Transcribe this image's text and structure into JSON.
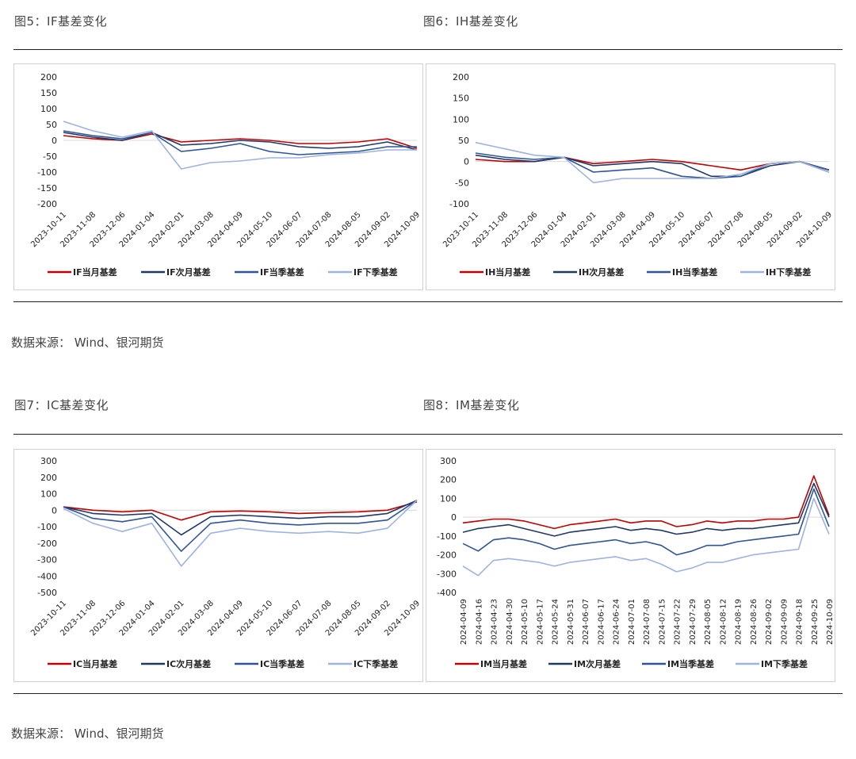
{
  "colors": {
    "s1": "#c00000",
    "s2": "#1f3864",
    "s3": "#2f5597",
    "s4": "#9db3e0",
    "axis": "#555555"
  },
  "figures": {
    "f5": {
      "title": "图5：IF基差变化"
    },
    "f6": {
      "title": "图6：IH基差变化"
    },
    "f7": {
      "title": "图7：IC基差变化"
    },
    "f8": {
      "title": "图8：IM基差变化"
    }
  },
  "source_top": "数据来源：  Wind、银河期货",
  "source_bottom": "数据来源：  Wind、银河期货",
  "chart_data": [
    {
      "id": "f5",
      "type": "line",
      "ylim": [
        -200,
        200
      ],
      "yticks": [
        200,
        150,
        100,
        50,
        0,
        -50,
        -100,
        -150,
        -200
      ],
      "categories": [
        "2023-10-11",
        "2023-11-08",
        "2023-12-06",
        "2024-01-04",
        "2024-02-01",
        "2024-03-08",
        "2024-04-09",
        "2024-05-10",
        "2024-06-07",
        "2024-07-08",
        "2024-08-05",
        "2024-09-02",
        "2024-10-09"
      ],
      "series": [
        {
          "name": "IF当月基差",
          "values": [
            15,
            5,
            0,
            20,
            -5,
            0,
            5,
            0,
            -10,
            -10,
            -5,
            5,
            -25
          ]
        },
        {
          "name": "IF次月基差",
          "values": [
            25,
            10,
            0,
            25,
            -15,
            -10,
            0,
            -5,
            -20,
            -25,
            -20,
            -5,
            -30
          ]
        },
        {
          "name": "IF当季基差",
          "values": [
            30,
            15,
            5,
            25,
            -35,
            -25,
            -10,
            -35,
            -45,
            -40,
            -35,
            -20,
            -20
          ]
        },
        {
          "name": "IF下季基差",
          "values": [
            60,
            30,
            10,
            30,
            -90,
            -70,
            -65,
            -55,
            -55,
            -45,
            -40,
            -30,
            -30
          ]
        }
      ]
    },
    {
      "id": "f6",
      "type": "line",
      "ylim": [
        -100,
        200
      ],
      "yticks": [
        200,
        150,
        100,
        50,
        0,
        -50,
        -100
      ],
      "categories": [
        "2023-10-11",
        "2023-11-08",
        "2023-12-06",
        "2024-01-04",
        "2024-02-01",
        "2024-03-08",
        "2024-04-09",
        "2024-05-10",
        "2024-06-07",
        "2024-07-08",
        "2024-08-05",
        "2024-09-02",
        "2024-10-09"
      ],
      "series": [
        {
          "name": "IH当月基差",
          "values": [
            5,
            0,
            0,
            10,
            -5,
            0,
            5,
            0,
            -10,
            -20,
            -5,
            0,
            -20
          ]
        },
        {
          "name": "IH次月基差",
          "values": [
            15,
            5,
            0,
            10,
            -10,
            -5,
            0,
            -5,
            -35,
            -35,
            -10,
            0,
            -25
          ]
        },
        {
          "name": "IH当季基差",
          "values": [
            20,
            10,
            5,
            10,
            -25,
            -20,
            -15,
            -35,
            -40,
            -35,
            -5,
            0,
            -20
          ]
        },
        {
          "name": "IH下季基差",
          "values": [
            45,
            30,
            15,
            10,
            -50,
            -40,
            -40,
            -40,
            -40,
            -30,
            -5,
            0,
            -25
          ]
        }
      ]
    },
    {
      "id": "f7",
      "type": "line",
      "ylim": [
        -500,
        300
      ],
      "yticks": [
        300,
        200,
        100,
        0,
        -100,
        -200,
        -300,
        -400,
        -500
      ],
      "categories": [
        "2023-10-11",
        "2023-11-08",
        "2023-12-06",
        "2024-01-04",
        "2024-02-01",
        "2024-03-08",
        "2024-04-09",
        "2024-05-10",
        "2024-06-07",
        "2024-07-08",
        "2024-08-05",
        "2024-09-02",
        "2024-10-09"
      ],
      "series": [
        {
          "name": "IC当月基差",
          "values": [
            20,
            0,
            -10,
            0,
            -60,
            -10,
            -5,
            -10,
            -20,
            -15,
            -10,
            0,
            50
          ]
        },
        {
          "name": "IC次月基差",
          "values": [
            20,
            -20,
            -30,
            -20,
            -150,
            -40,
            -30,
            -40,
            -50,
            -40,
            -40,
            -20,
            60
          ]
        },
        {
          "name": "IC当季基差",
          "values": [
            20,
            -50,
            -70,
            -40,
            -250,
            -80,
            -60,
            -80,
            -90,
            -80,
            -80,
            -60,
            60
          ]
        },
        {
          "name": "IC下季基差",
          "values": [
            10,
            -80,
            -130,
            -80,
            -340,
            -140,
            -110,
            -130,
            -140,
            -130,
            -140,
            -110,
            60
          ]
        }
      ]
    },
    {
      "id": "f8",
      "type": "line",
      "ylim": [
        -400,
        300
      ],
      "yticks": [
        300,
        200,
        100,
        0,
        -100,
        -200,
        -300,
        -400
      ],
      "categories": [
        "2024-04-09",
        "2024-04-16",
        "2024-04-23",
        "2024-04-30",
        "2024-05-10",
        "2024-05-17",
        "2024-05-24",
        "2024-05-31",
        "2024-06-07",
        "2024-06-17",
        "2024-06-24",
        "2024-07-01",
        "2024-07-08",
        "2024-07-15",
        "2024-07-22",
        "2024-07-29",
        "2024-08-05",
        "2024-08-12",
        "2024-08-19",
        "2024-08-26",
        "2024-09-02",
        "2024-09-09",
        "2024-09-18",
        "2024-09-25",
        "2024-10-09"
      ],
      "series": [
        {
          "name": "IM当月基差",
          "values": [
            -30,
            -20,
            -10,
            -10,
            -20,
            -40,
            -60,
            -40,
            -30,
            -20,
            -10,
            -30,
            -20,
            -20,
            -50,
            -40,
            -20,
            -30,
            -20,
            -20,
            -10,
            -10,
            0,
            220,
            10
          ]
        },
        {
          "name": "IM次月基差",
          "values": [
            -80,
            -60,
            -50,
            -40,
            -60,
            -80,
            -100,
            -80,
            -70,
            -60,
            -50,
            -70,
            -60,
            -70,
            -90,
            -80,
            -60,
            -70,
            -60,
            -60,
            -50,
            -40,
            -30,
            180,
            0
          ]
        },
        {
          "name": "IM当季基差",
          "values": [
            -140,
            -180,
            -120,
            -110,
            -120,
            -140,
            -170,
            -150,
            -140,
            -130,
            -120,
            -140,
            -130,
            -150,
            -200,
            -180,
            -150,
            -150,
            -130,
            -120,
            -110,
            -100,
            -90,
            150,
            -50
          ]
        },
        {
          "name": "IM下季基差",
          "values": [
            -260,
            -310,
            -230,
            -220,
            -230,
            -240,
            -260,
            -240,
            -230,
            -220,
            -210,
            -230,
            -220,
            -250,
            -290,
            -270,
            -240,
            -240,
            -220,
            -200,
            -190,
            -180,
            -170,
            100,
            -90
          ]
        }
      ]
    }
  ]
}
